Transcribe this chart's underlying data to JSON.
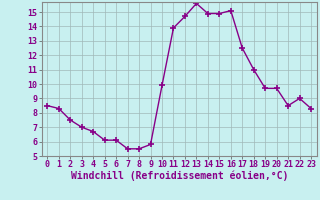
{
  "hours": [
    0,
    1,
    2,
    3,
    4,
    5,
    6,
    7,
    8,
    9,
    10,
    11,
    12,
    13,
    14,
    15,
    16,
    17,
    18,
    19,
    20,
    21,
    22,
    23
  ],
  "values": [
    8.5,
    8.3,
    7.5,
    7.0,
    6.7,
    6.1,
    6.1,
    5.5,
    5.5,
    5.8,
    9.9,
    13.9,
    14.7,
    15.6,
    14.9,
    14.9,
    15.1,
    12.5,
    11.0,
    9.7,
    9.7,
    8.5,
    9.0,
    8.3
  ],
  "line_color": "#880088",
  "marker": "+",
  "marker_size": 4,
  "bg_color": "#c8f0f0",
  "grid_color": "#a0b8b8",
  "xlabel": "Windchill (Refroidissement éolien,°C)",
  "ylim": [
    5,
    15.7
  ],
  "xlim": [
    -0.5,
    23.5
  ],
  "yticks": [
    5,
    6,
    7,
    8,
    9,
    10,
    11,
    12,
    13,
    14,
    15
  ],
  "xticks": [
    0,
    1,
    2,
    3,
    4,
    5,
    6,
    7,
    8,
    9,
    10,
    11,
    12,
    13,
    14,
    15,
    16,
    17,
    18,
    19,
    20,
    21,
    22,
    23
  ],
  "tick_fontsize": 6,
  "xlabel_fontsize": 7,
  "text_color": "#880088"
}
